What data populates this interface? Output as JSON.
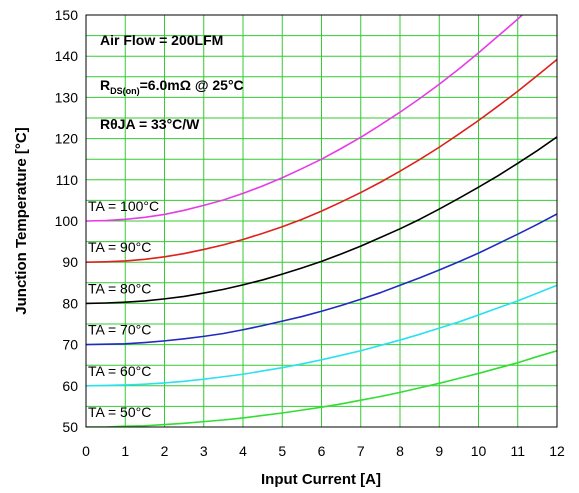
{
  "chart_data": {
    "type": "line",
    "title": "",
    "xlabel": "Input Current [A]",
    "ylabel": "Junction Temperature [°C]",
    "xlim": [
      0,
      12
    ],
    "ylim": [
      50,
      150
    ],
    "x_ticks": [
      "0",
      "1",
      "2",
      "3",
      "4",
      "5",
      "6",
      "7",
      "8",
      "9",
      "10",
      "11",
      "12"
    ],
    "y_ticks": [
      "50",
      "60",
      "70",
      "80",
      "90",
      "100",
      "110",
      "120",
      "130",
      "140",
      "150"
    ],
    "grid": true,
    "grid_color": "#33cc33",
    "annotations": {
      "air_flow": "Air Flow = 200LFM",
      "rds_main": "R",
      "rds_sub": "DS(on)",
      "rds_rest": "=6.0mΩ @ 25°C",
      "theta": "RθJA = 33°C/W"
    },
    "x": [
      0,
      0.5,
      1,
      1.5,
      2,
      2.5,
      3,
      3.5,
      4,
      4.5,
      5,
      5.5,
      6,
      6.5,
      7,
      7.5,
      8,
      8.5,
      9,
      9.5,
      10,
      10.5,
      11,
      11.5,
      12
    ],
    "series": [
      {
        "name": "TA = 100°C",
        "color": "#e83be8",
        "values": [
          100,
          100.1,
          100.4,
          100.9,
          101.6,
          102.6,
          103.8,
          105.1,
          106.7,
          108.5,
          110.5,
          112.7,
          115.0,
          117.6,
          120.3,
          123.3,
          126.4,
          129.7,
          133.2,
          136.9,
          140.8,
          144.9,
          149.0,
          153.4,
          157.9
        ]
      },
      {
        "name": "TA = 90°C",
        "color": "#e0201c",
        "values": [
          90,
          90.1,
          90.3,
          90.7,
          91.3,
          92.1,
          93.1,
          94.2,
          95.5,
          97.0,
          98.6,
          100.4,
          102.4,
          104.6,
          106.9,
          109.4,
          112.1,
          114.9,
          117.9,
          121.1,
          124.4,
          127.9,
          131.5,
          135.3,
          139.2
        ]
      },
      {
        "name": "TA = 80°C",
        "color": "#000000",
        "values": [
          80,
          80.1,
          80.3,
          80.6,
          81.1,
          81.7,
          82.5,
          83.4,
          84.5,
          85.7,
          87.1,
          88.6,
          90.2,
          92.0,
          93.9,
          96.0,
          98.1,
          100.4,
          102.9,
          105.5,
          108.2,
          111.0,
          114.0,
          117.1,
          120.4
        ]
      },
      {
        "name": "TA = 70°C",
        "color": "#1f2bbf",
        "values": [
          70,
          70.1,
          70.2,
          70.5,
          70.9,
          71.4,
          72.0,
          72.7,
          73.6,
          74.6,
          75.7,
          76.8,
          78.1,
          79.5,
          81.0,
          82.6,
          84.4,
          86.2,
          88.1,
          90.1,
          92.2,
          94.5,
          96.8,
          99.2,
          101.7
        ]
      },
      {
        "name": "TA = 60°C",
        "color": "#2de0f0",
        "values": [
          60,
          60.1,
          60.2,
          60.4,
          60.7,
          61.1,
          61.6,
          62.2,
          62.8,
          63.6,
          64.4,
          65.3,
          66.3,
          67.4,
          68.5,
          69.8,
          71.1,
          72.5,
          74.0,
          75.5,
          77.2,
          78.9,
          80.6,
          82.5,
          84.4
        ]
      },
      {
        "name": "TA = 50°C",
        "color": "#33dd33",
        "values": [
          50,
          50.0,
          50.2,
          50.3,
          50.6,
          50.9,
          51.3,
          51.7,
          52.2,
          52.8,
          53.4,
          54.1,
          54.8,
          55.6,
          56.5,
          57.4,
          58.4,
          59.5,
          60.6,
          61.8,
          63.0,
          64.3,
          65.6,
          67.1,
          68.5
        ]
      }
    ]
  }
}
